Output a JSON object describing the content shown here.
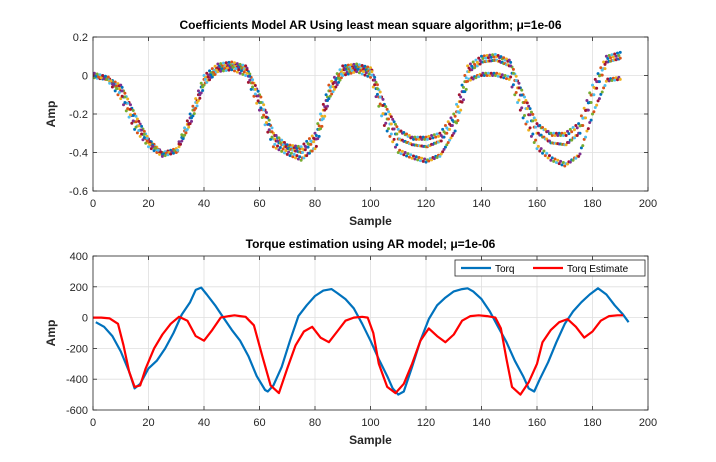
{
  "chart_data": [
    {
      "type": "scatter",
      "title": "Coefficients Model AR Using least mean square algorithm; μ=1e-06",
      "xlabel": "Sample",
      "ylabel": "Amp",
      "xlim": [
        0,
        200
      ],
      "ylim": [
        -0.6,
        0.2
      ],
      "xticks": [
        "0",
        "20",
        "40",
        "60",
        "80",
        "100",
        "120",
        "140",
        "160",
        "180",
        "200"
      ],
      "yticks": [
        "-0.6",
        "-0.4",
        "-0.2",
        "0",
        "0.2"
      ],
      "grid": true,
      "series_colors": [
        "#0072BD",
        "#D95319",
        "#EDB120",
        "#7E2F8E",
        "#77AC30",
        "#4DBEEE",
        "#A2142F"
      ],
      "series": [
        {
          "x": [
            0,
            5,
            10,
            15,
            20,
            25,
            30,
            35,
            40,
            45,
            50,
            55,
            60,
            65,
            70,
            75,
            80,
            85,
            90,
            95,
            100,
            105,
            110,
            115,
            120,
            125,
            130,
            135,
            140,
            145,
            150,
            155,
            160,
            165,
            170,
            175,
            180,
            185,
            190
          ],
          "y": [
            0,
            -0.01,
            -0.05,
            -0.2,
            -0.33,
            -0.4,
            -0.38,
            -0.2,
            0.0,
            0.06,
            0.07,
            0.05,
            -0.1,
            -0.3,
            -0.36,
            -0.37,
            -0.3,
            -0.05,
            0.05,
            0.06,
            0.04,
            -0.15,
            -0.28,
            -0.32,
            -0.32,
            -0.3,
            -0.2,
            0.05,
            0.1,
            0.11,
            0.08,
            -0.1,
            -0.25,
            -0.3,
            -0.3,
            -0.25,
            -0.05,
            0.1,
            0.12
          ]
        },
        {
          "x": [
            0,
            5,
            10,
            15,
            20,
            25,
            30,
            35,
            40,
            45,
            50,
            55,
            60,
            65,
            70,
            75,
            80,
            85,
            90,
            95,
            100,
            105,
            110,
            115,
            120,
            125,
            130,
            135,
            140,
            145,
            150,
            155,
            160,
            165,
            170,
            175,
            180,
            185,
            190
          ],
          "y": [
            0,
            -0.02,
            -0.08,
            -0.24,
            -0.35,
            -0.41,
            -0.39,
            -0.22,
            -0.02,
            0.04,
            0.05,
            0.03,
            -0.14,
            -0.33,
            -0.38,
            -0.4,
            -0.33,
            -0.08,
            0.03,
            0.04,
            0.02,
            -0.2,
            -0.33,
            -0.36,
            -0.37,
            -0.34,
            -0.24,
            0.02,
            0.07,
            0.08,
            0.05,
            -0.14,
            -0.3,
            -0.35,
            -0.36,
            -0.3,
            -0.1,
            0.07,
            0.09
          ]
        },
        {
          "x": [
            0,
            5,
            10,
            15,
            20,
            25,
            30,
            35,
            40,
            45,
            50,
            55,
            60,
            65,
            70,
            75,
            80,
            85,
            90,
            95,
            100,
            105,
            110,
            115,
            120,
            125,
            130,
            135,
            140,
            145,
            150,
            155,
            160,
            165,
            170,
            175,
            180,
            185,
            190
          ],
          "y": [
            0,
            -0.02,
            -0.12,
            -0.28,
            -0.37,
            -0.42,
            -0.4,
            -0.25,
            -0.05,
            0.02,
            0.03,
            0.0,
            -0.18,
            -0.37,
            -0.41,
            -0.44,
            -0.38,
            -0.12,
            0.0,
            0.02,
            -0.01,
            -0.26,
            -0.4,
            -0.43,
            -0.45,
            -0.42,
            -0.3,
            -0.03,
            0.0,
            0.0,
            -0.02,
            -0.22,
            -0.38,
            -0.44,
            -0.47,
            -0.42,
            -0.2,
            -0.03,
            -0.02
          ]
        }
      ]
    },
    {
      "type": "line",
      "title": "Torque estimation using AR model; μ=1e-06",
      "xlabel": "Sample",
      "ylabel": "Amp",
      "xlim": [
        0,
        200
      ],
      "ylim": [
        -600,
        400
      ],
      "xticks": [
        "0",
        "20",
        "40",
        "60",
        "80",
        "100",
        "120",
        "140",
        "160",
        "180",
        "200"
      ],
      "yticks": [
        "-600",
        "-400",
        "-200",
        "0",
        "200",
        "400"
      ],
      "grid": true,
      "legend_position": "top-right",
      "series": [
        {
          "name": "Torq",
          "color": "#0072BD",
          "x": [
            1,
            4,
            7,
            10,
            13,
            15,
            17,
            20,
            23,
            26,
            29,
            32,
            35,
            37,
            39,
            41,
            44,
            47,
            50,
            53,
            56,
            59,
            62,
            63,
            65,
            68,
            71,
            74,
            77,
            80,
            83,
            86,
            88,
            91,
            94,
            97,
            100,
            103,
            106,
            108,
            110,
            112,
            115,
            118,
            121,
            124,
            127,
            130,
            133,
            135,
            137,
            140,
            143,
            146,
            149,
            152,
            155,
            157,
            159,
            161,
            164,
            167,
            170,
            173,
            176,
            179,
            182,
            185,
            188,
            191,
            193
          ],
          "y": [
            -30,
            -60,
            -120,
            -220,
            -350,
            -460,
            -430,
            -330,
            -280,
            -200,
            -100,
            20,
            100,
            180,
            195,
            150,
            80,
            0,
            -80,
            -150,
            -250,
            -380,
            -470,
            -480,
            -440,
            -320,
            -150,
            10,
            80,
            140,
            175,
            185,
            160,
            120,
            60,
            -40,
            -150,
            -270,
            -380,
            -460,
            -500,
            -480,
            -320,
            -150,
            -10,
            80,
            130,
            170,
            185,
            190,
            170,
            120,
            40,
            -60,
            -160,
            -280,
            -380,
            -460,
            -480,
            -400,
            -290,
            -160,
            -40,
            40,
            100,
            150,
            190,
            150,
            80,
            20,
            -30
          ]
        },
        {
          "name": "Torq Estimate",
          "color": "#FF0000",
          "x": [
            0,
            3,
            6,
            9,
            11,
            13,
            15,
            17,
            19,
            22,
            25,
            28,
            31,
            34,
            37,
            40,
            43,
            46,
            49,
            51,
            53,
            55,
            58,
            61,
            64,
            67,
            70,
            73,
            76,
            79,
            82,
            85,
            88,
            91,
            94,
            97,
            99,
            101,
            103,
            106,
            109,
            112,
            115,
            118,
            121,
            124,
            127,
            130,
            133,
            136,
            139,
            142,
            145,
            147,
            149,
            151,
            154,
            157,
            160,
            162,
            165,
            168,
            171,
            174,
            177,
            180,
            183,
            186,
            189,
            191
          ],
          "y": [
            0,
            0,
            -5,
            -40,
            -180,
            -350,
            -450,
            -440,
            -330,
            -200,
            -110,
            -40,
            5,
            -20,
            -120,
            -150,
            -80,
            0,
            10,
            15,
            10,
            5,
            -50,
            -250,
            -440,
            -490,
            -330,
            -180,
            -90,
            -60,
            -130,
            -160,
            -90,
            -20,
            0,
            5,
            0,
            -100,
            -300,
            -450,
            -490,
            -430,
            -300,
            -150,
            -70,
            -120,
            -160,
            -110,
            -20,
            10,
            15,
            10,
            0,
            -70,
            -270,
            -450,
            -500,
            -420,
            -300,
            -160,
            -80,
            -30,
            -10,
            -60,
            -130,
            -90,
            -20,
            10,
            15,
            15
          ]
        }
      ]
    }
  ]
}
